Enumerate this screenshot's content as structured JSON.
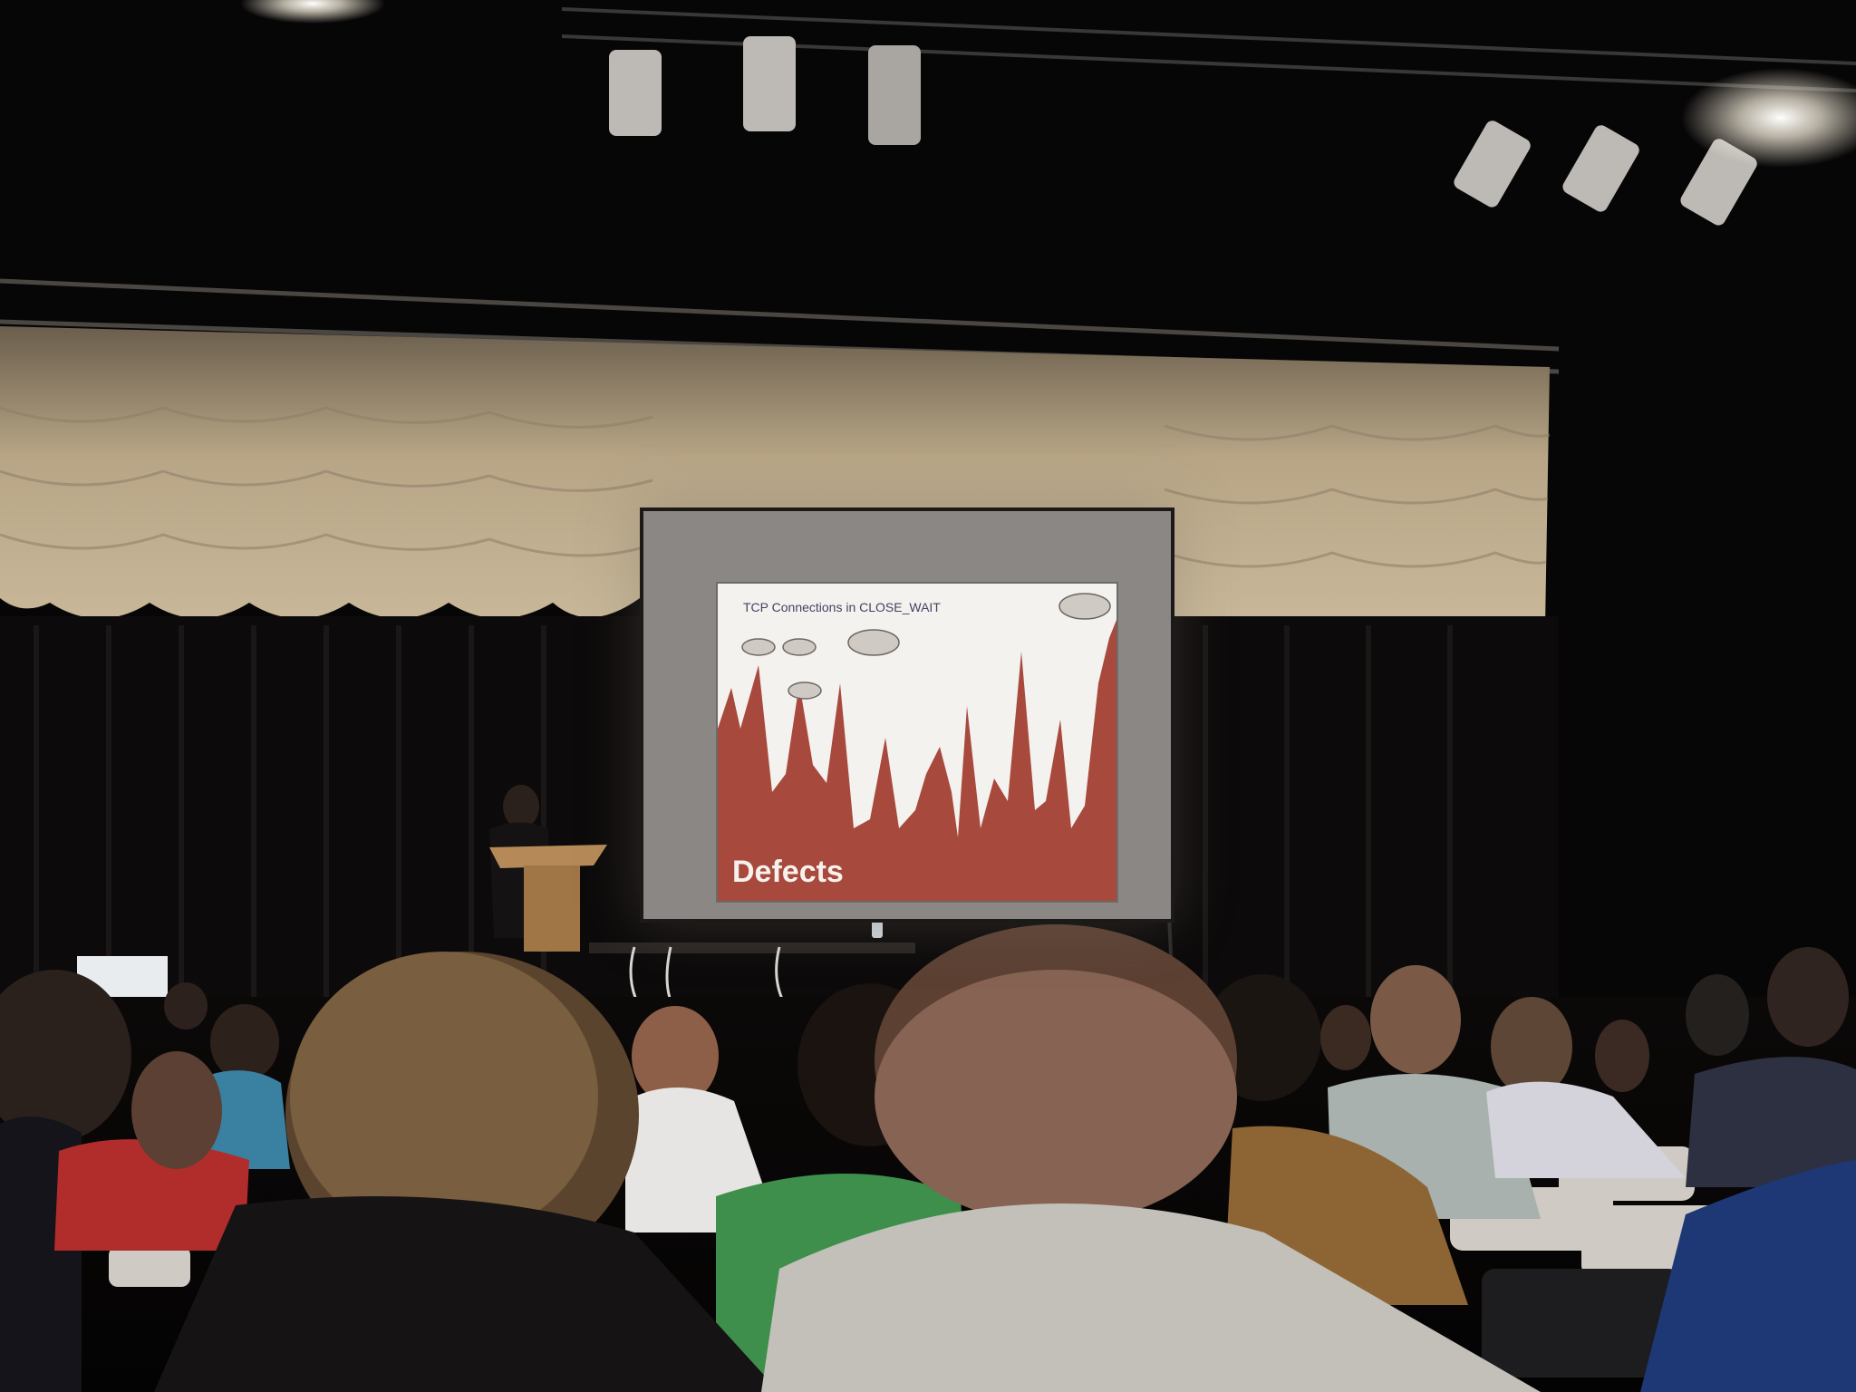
{
  "slide": {
    "title": "TCP Connections in CLOSE_WAIT",
    "label": "Defects"
  },
  "colors": {
    "slide_background": "#f3f2ee",
    "chart_fill": "#a8493d",
    "screen_border": "#8b8785",
    "curtain": "#c9b79a"
  }
}
